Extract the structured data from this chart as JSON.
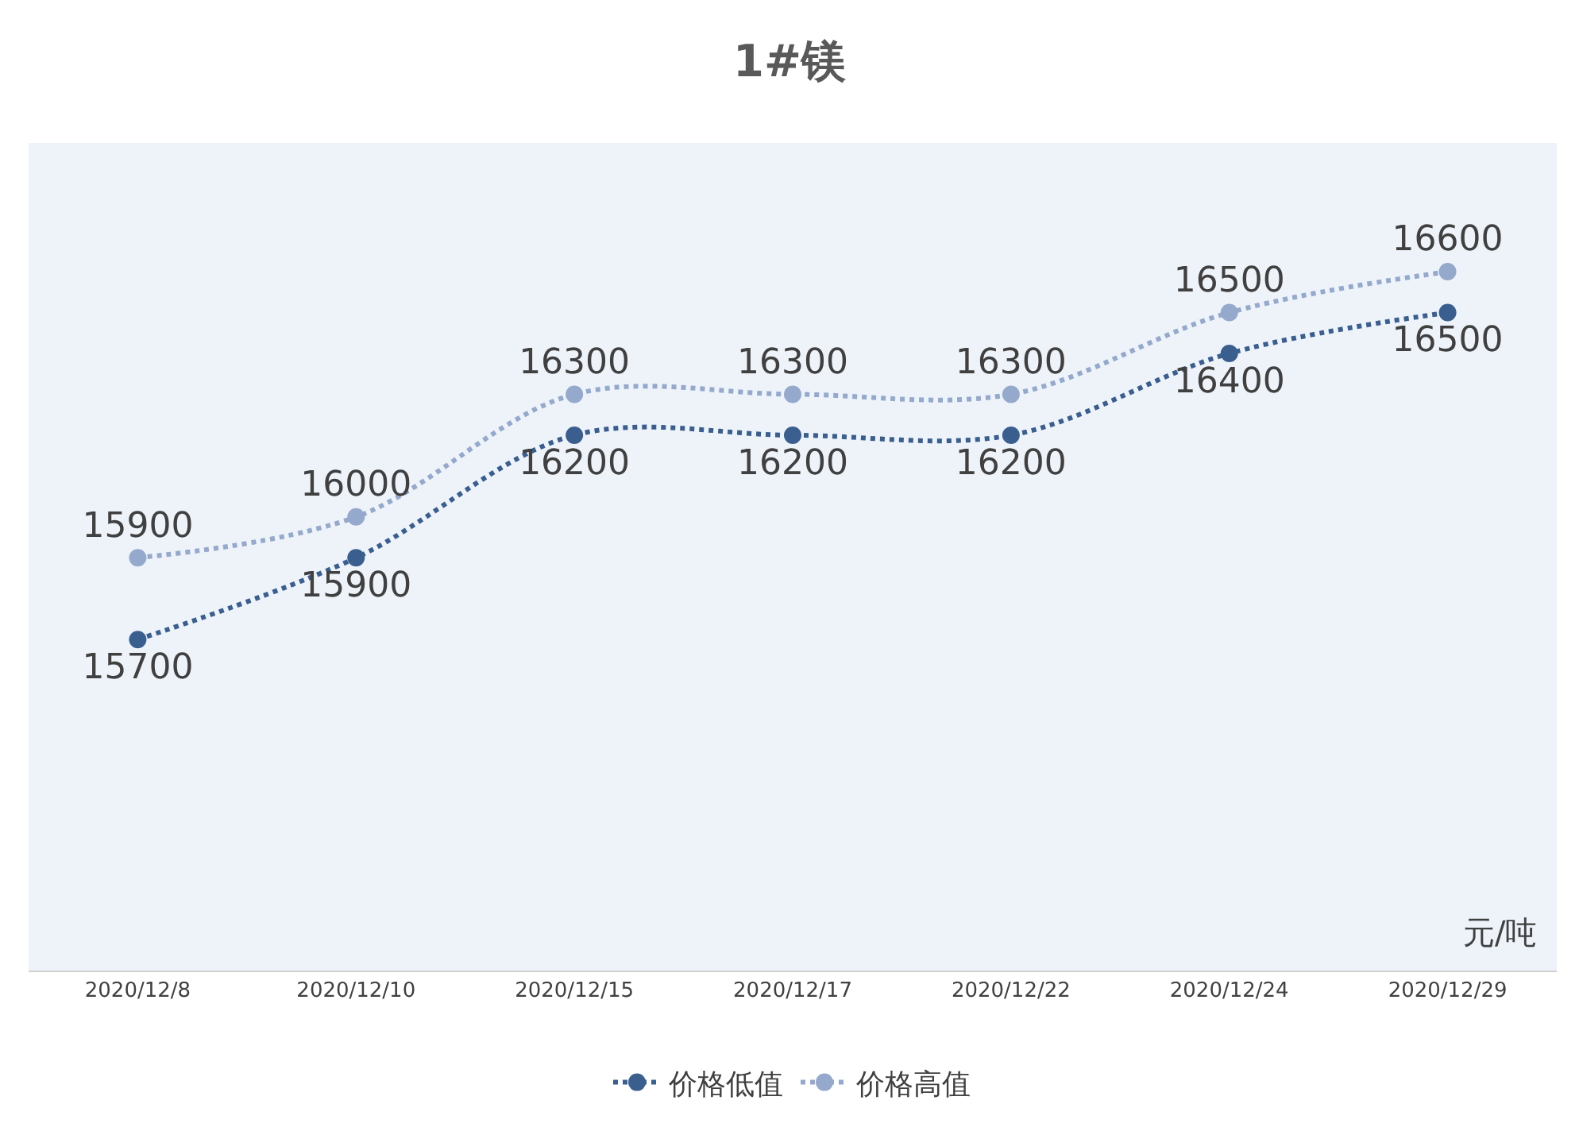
{
  "chart_data": {
    "type": "line",
    "title": "1#镁",
    "categories": [
      "2020/12/8",
      "2020/12/10",
      "2020/12/15",
      "2020/12/17",
      "2020/12/22",
      "2020/12/24",
      "2020/12/29"
    ],
    "series": [
      {
        "name": "价格低值",
        "color": "#3a5f8f",
        "values": [
          15700,
          15900,
          16200,
          16200,
          16200,
          16400,
          16500
        ]
      },
      {
        "name": "价格高值",
        "color": "#94a9cc",
        "values": [
          15900,
          16000,
          16300,
          16300,
          16300,
          16500,
          16600
        ]
      }
    ],
    "annotations": [
      "元/吨"
    ],
    "data_labels": true,
    "grid": false,
    "legend": "bottom",
    "marker": "circle",
    "line_style": "dotted"
  }
}
